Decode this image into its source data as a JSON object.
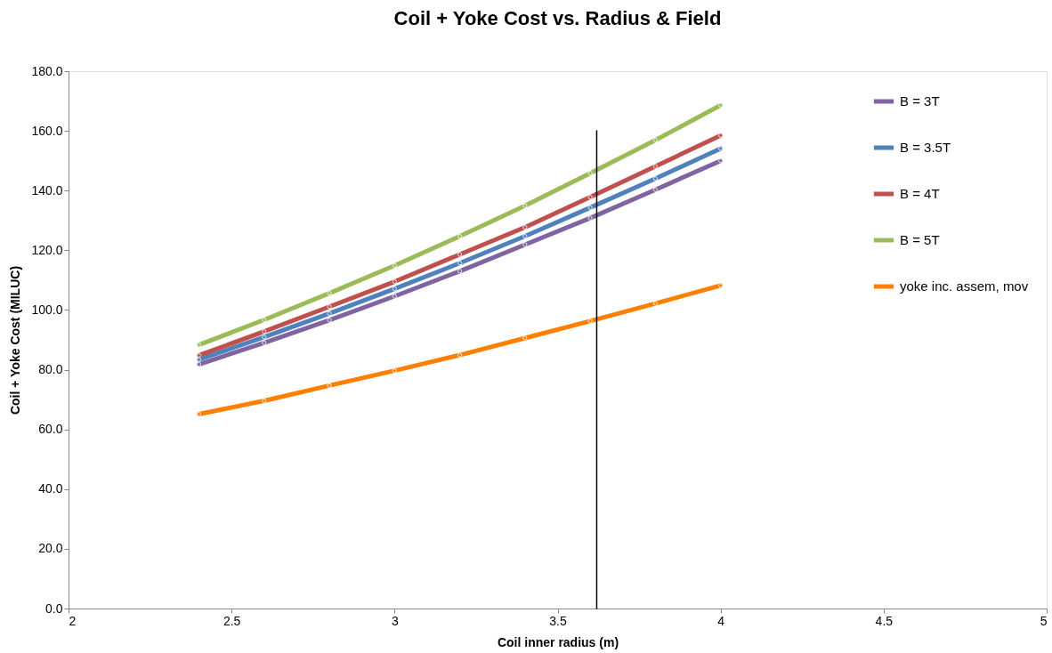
{
  "chart_data": {
    "type": "line",
    "title": "Coil + Yoke Cost vs. Radius & Field",
    "xlabel": "Coil inner radius (m)",
    "ylabel": "Coil + Yoke  Cost (MILUC)",
    "x": [
      2.4,
      2.6,
      2.8,
      3.0,
      3.2,
      3.4,
      3.6,
      3.8,
      4.0
    ],
    "series": [
      {
        "name": "B = 3T",
        "color": "#8064a2",
        "values": [
          81.8,
          89.0,
          96.6,
          104.6,
          113.0,
          121.9,
          130.8,
          140.3,
          150.0
        ]
      },
      {
        "name": "B = 3.5T",
        "color": "#4f81bd",
        "values": [
          83.4,
          90.9,
          98.8,
          107.1,
          115.7,
          124.7,
          134.3,
          144.0,
          154.1
        ]
      },
      {
        "name": "B = 4T",
        "color": "#c0504d",
        "values": [
          84.8,
          92.8,
          101.1,
          109.5,
          118.6,
          127.7,
          137.8,
          148.1,
          158.5
        ]
      },
      {
        "name": "B = 5T",
        "color": "#9bbb59",
        "values": [
          88.3,
          96.7,
          105.6,
          114.9,
          124.7,
          134.9,
          145.8,
          156.9,
          168.6
        ]
      },
      {
        "name": "yoke inc. assem, mov",
        "color": "#ff7f00",
        "values": [
          65.1,
          69.6,
          74.7,
          79.7,
          84.9,
          90.6,
          96.3,
          102.2,
          108.2
        ]
      },
      {
        "color": "#000000",
        "x": [
          3.62,
          3.62
        ],
        "values": [
          0,
          160
        ],
        "marker": "none"
      }
    ],
    "xlim": [
      2,
      5
    ],
    "xticks": [
      {
        "value": 2,
        "label": "2"
      },
      2.5,
      {
        "value": 3,
        "label": "3"
      },
      3.5,
      {
        "value": 4,
        "label": "4"
      },
      4.5,
      {
        "value": 5,
        "label": "5"
      }
    ],
    "ylim": [
      0,
      180
    ],
    "yticks": [
      {
        "value": 0,
        "label": "0.0"
      },
      {
        "value": 20,
        "label": "20.0"
      },
      {
        "value": 40,
        "label": "40.0"
      },
      {
        "value": 60,
        "label": "60.0"
      },
      {
        "value": 80,
        "label": "80.0"
      },
      {
        "value": 100,
        "label": "100.0"
      },
      {
        "value": 120,
        "label": "120.0"
      },
      {
        "value": 140,
        "label": "140.0"
      },
      {
        "value": 160,
        "label": "160.0"
      },
      {
        "value": 180,
        "label": "180.0"
      }
    ],
    "grid": false,
    "legend": "top right",
    "marker": "circle",
    "line_style": "solid"
  }
}
